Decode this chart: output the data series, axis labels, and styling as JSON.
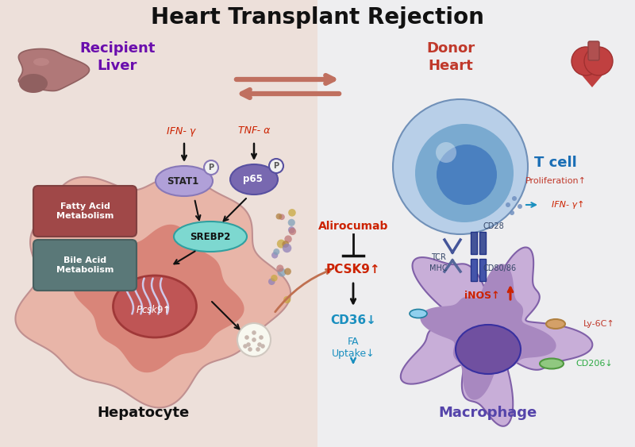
{
  "title": "Heart Transplant Rejection",
  "bg_left": "#ede0da",
  "bg_right": "#eeeef0",
  "cell_colors": {
    "hepatocyte_outer": "#e8b5a8",
    "hepatocyte_inner": "#d4756a",
    "nucleus_outer": "#bf5555",
    "nucleus_inner": "#a03838",
    "tcell_outer": "#b8cfe8",
    "tcell_inner": "#7aaad0",
    "tcell_nucleus": "#4a80c0",
    "macrophage_outer": "#c8aed8",
    "macrophage_inner": "#a888c0",
    "macrophage_nucleus": "#7050a0",
    "srebp2": "#7dd8d0",
    "stat1": "#b0a0d8",
    "p65": "#7868b0",
    "fatty_acid": "#a04848",
    "bile_acid": "#5a7878"
  },
  "labels": {
    "ifn_gamma": "IFN- γ",
    "tnf_alpha": "TNF- α",
    "stat1": "STAT1",
    "p65": "p65",
    "srebp2": "SREBP2",
    "pcsk9_gene": "Pcsk9↑",
    "fatty_acid": "Fatty Acid\nMetabolism",
    "bile_acid": "Bile Acid\nMetabolism",
    "pcsk9": "PCSK9↑",
    "alirocumab": "Alirocumab",
    "cd36": "CD36↓",
    "fa_uptake": "FA\nUptake↓",
    "inos": "iNOS↑",
    "tcr": "TCR",
    "mhc": "MHC",
    "cd28": "CD28",
    "cd8086": "CD80/86",
    "t_cell": "T cell",
    "proliferation": "Proliferation↑",
    "ifn_gamma_tcell": "IFN- γ↑",
    "ly6c": "Ly-6C↑",
    "cd206": "CD206↓",
    "p_label": "P",
    "hepatocyte": "Hepatocyte",
    "macrophage": "Macrophage",
    "recipient": "Recipient\nLiver",
    "donor": "Donor\nHeart"
  },
  "colors": {
    "recipient": "#6a0dad",
    "donor": "#c0392b",
    "cytokine": "#cc2200",
    "pcsk9": "#cc2200",
    "alirocumab": "#cc2200",
    "cd36": "#1a8fbf",
    "tcell_lbl": "#1a6eb5",
    "inos": "#cc2200",
    "green": "#2eaa44",
    "black_arrow": "#1a1a1a",
    "macrophage_lbl": "#5544aa"
  }
}
